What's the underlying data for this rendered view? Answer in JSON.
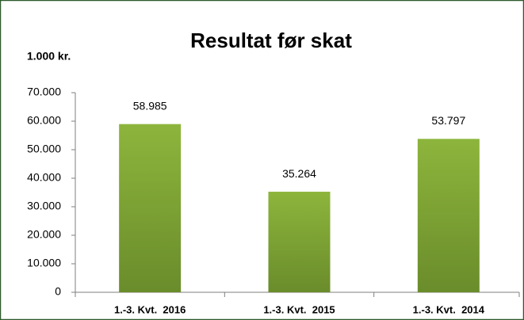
{
  "chart_data": {
    "type": "bar",
    "title": "Resultat før skat",
    "y_label": "1.000 kr.",
    "categories": [
      "1.-3. Kvt.  2016",
      "1.-3. Kvt.  2015",
      "1.-3. Kvt.  2014"
    ],
    "values": [
      58985,
      35264,
      53797
    ],
    "value_labels": [
      "58.985",
      "35.264",
      "53.797"
    ],
    "color": "#8db53c",
    "ylim": [
      0,
      70000
    ],
    "yticks": [
      0,
      {
        "value": 10000,
        "label": "10.000"
      },
      {
        "value": 20000,
        "label": "20.000"
      },
      {
        "value": 30000,
        "label": "30.000"
      },
      {
        "value": 40000,
        "label": "40.000"
      },
      {
        "value": 50000,
        "label": "50.000"
      },
      {
        "value": 60000,
        "label": "60.000"
      },
      {
        "value": 70000,
        "label": "70.000"
      }
    ],
    "grid": false
  }
}
